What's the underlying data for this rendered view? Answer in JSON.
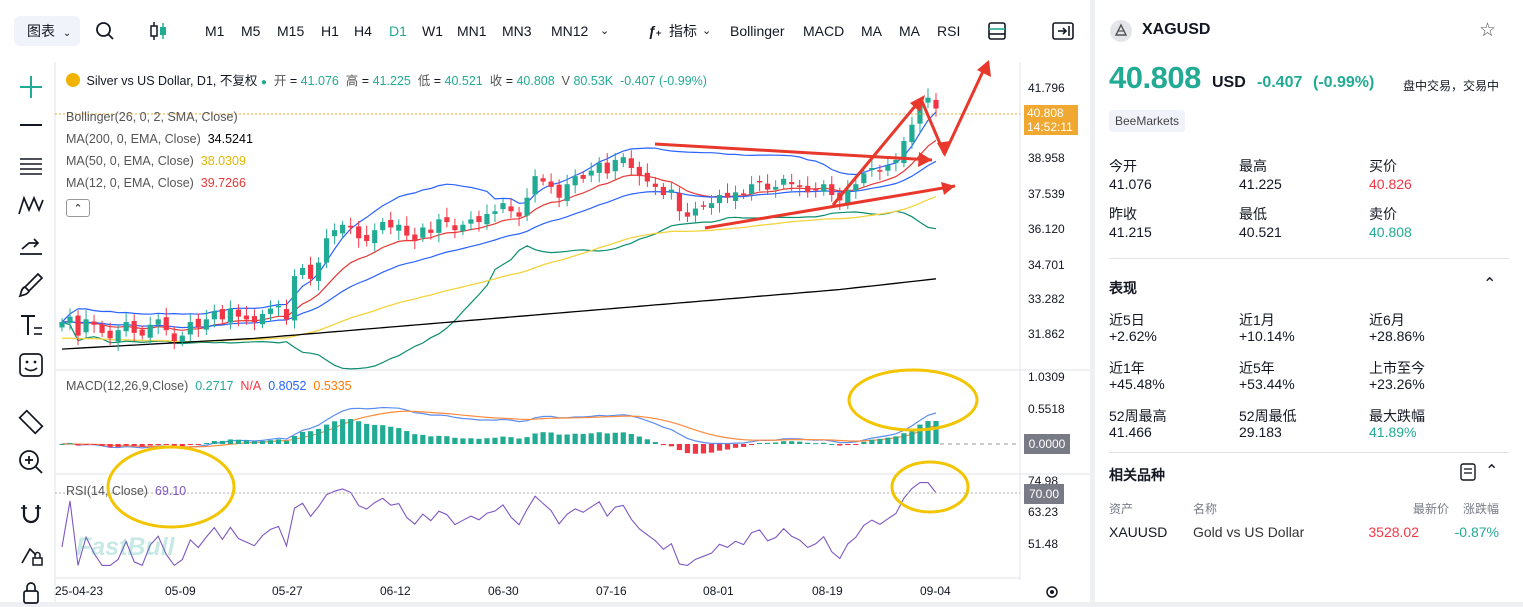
{
  "toolbar": {
    "chart_type_label": "图表",
    "timeframes": [
      "M1",
      "M5",
      "M15",
      "H1",
      "H4",
      "D1",
      "W1",
      "MN1",
      "MN3",
      "MN12"
    ],
    "active_timeframe": "D1",
    "indicator_label": "指标",
    "indicators": [
      "Bollinger",
      "MACD",
      "MA",
      "MA",
      "RSI"
    ]
  },
  "legend": {
    "symbol_title": "Silver vs US Dollar, D1, 不复权",
    "open_label": "开",
    "open": "41.076",
    "high_label": "高",
    "high": "41.225",
    "low_label": "低",
    "low": "40.521",
    "close_label": "收",
    "close": "40.808",
    "vol_label": "V",
    "volume": "80.53K",
    "change": "-0.407 (-0.99%)",
    "bollinger": "Bollinger(26, 0, 2, SMA, Close)",
    "ma200_label": "MA(200, 0, EMA, Close)",
    "ma200": "34.5241",
    "ma50_label": "MA(50, 0, EMA, Close)",
    "ma50": "38.0309",
    "ma12_label": "MA(12, 0, EMA, Close)",
    "ma12": "39.7266",
    "macd_label": "MACD(12,26,9,Close)",
    "macd_hist": "0.2717",
    "macd_na": "N/A",
    "macd_line": "0.8052",
    "macd_signal": "0.5335",
    "rsi_label": "RSI(14, Close)",
    "rsi": "69.10"
  },
  "price_tag": {
    "price": "40.808",
    "countdown": "14:52:11"
  },
  "watermark": "FastBull",
  "chart_data": {
    "type": "line",
    "title": "Silver vs US Dollar, D1",
    "x_ticks": [
      "25-04-23",
      "05-09",
      "05-27",
      "06-12",
      "06-30",
      "07-16",
      "08-01",
      "08-19",
      "09-04"
    ],
    "price_axis": [
      "41.796",
      "40.808",
      "38.958",
      "37.539",
      "36.120",
      "34.701",
      "33.282",
      "31.862"
    ],
    "macd_axis": [
      "1.0309",
      "0.5518",
      "0.0000"
    ],
    "rsi_axis": [
      "74.98",
      "70.00",
      "63.23",
      "51.48"
    ],
    "ylim": [
      31.2,
      42.3
    ],
    "series": [
      {
        "values": [
          32.9,
          33.1,
          32.4,
          33.0,
          32.8,
          32.5,
          32.3,
          32.6,
          32.9,
          32.5,
          32.4,
          32.8,
          33.0,
          32.6,
          32.2,
          32.4,
          32.9,
          32.7,
          33.0,
          33.3,
          33.0,
          33.4,
          33.1,
          33.0,
          32.9,
          33.2,
          33.4,
          33.5,
          33.0,
          34.6,
          34.9,
          34.5,
          35.1,
          36.0,
          36.3,
          36.5,
          36.4,
          36.0,
          35.9,
          36.3,
          36.6,
          36.4,
          36.5,
          36.1,
          35.9,
          36.4,
          36.2,
          36.7,
          36.6,
          36.3,
          36.5,
          36.7,
          36.6,
          36.9,
          37.0,
          37.3,
          37.0,
          36.8,
          37.5,
          38.3,
          38.1,
          37.9,
          37.5,
          38.0,
          38.3,
          38.2,
          38.5,
          38.8,
          38.4,
          38.9,
          39.0,
          38.6,
          38.3,
          38.1,
          37.9,
          37.6,
          37.8,
          37.0,
          36.8,
          37.1,
          37.2,
          37.3,
          37.6,
          37.5,
          37.7,
          37.6,
          38.0,
          38.1,
          37.8,
          37.9,
          38.2,
          38.0,
          37.9,
          37.7,
          37.8,
          38.0,
          37.6,
          37.4,
          37.8,
          38.0,
          38.4,
          38.6,
          38.5,
          38.7,
          38.9,
          39.6,
          40.2,
          40.9,
          41.2,
          40.8
        ]
      },
      {
        "name": "MA(200, 0, EMA, Close)",
        "values": [
          31.9,
          32.1,
          32.3,
          32.6,
          32.9,
          33.2,
          33.5,
          33.8,
          34.1,
          34.5
        ]
      }
    ]
  },
  "panel": {
    "symbol": "XAGUSD",
    "price": "40.808",
    "currency": "USD",
    "change": "-0.407",
    "change_pct": "(-0.99%)",
    "session": "盘中交易，交易中",
    "badge": "BeeMarkets",
    "stats": [
      {
        "label": "今开",
        "value": "41.076"
      },
      {
        "label": "最高",
        "value": "41.225"
      },
      {
        "label": "买价",
        "value": "40.826"
      },
      {
        "label": "昨收",
        "value": "41.215"
      },
      {
        "label": "最低",
        "value": "40.521"
      },
      {
        "label": "卖价",
        "value": "40.808"
      }
    ],
    "performance_title": "表现",
    "performance": [
      {
        "label": "近5日",
        "value": "+2.62%"
      },
      {
        "label": "近1月",
        "value": "+10.14%"
      },
      {
        "label": "近6月",
        "value": "+28.86%"
      },
      {
        "label": "近1年",
        "value": "+45.48%"
      },
      {
        "label": "近5年",
        "value": "+53.44%"
      },
      {
        "label": "上市至今",
        "value": "+23.26%"
      },
      {
        "label": "52周最高",
        "value": "41.466"
      },
      {
        "label": "52周最低",
        "value": "29.183"
      },
      {
        "label": "最大跌幅",
        "value": "41.89%"
      }
    ],
    "related_title": "相关品种",
    "related_headers": [
      "资产",
      "名称",
      "最新价",
      "涨跌幅"
    ],
    "related": [
      {
        "asset": "XAUUSD",
        "name": "Gold vs US Dollar",
        "price": "3528.02",
        "change": "-0.87%"
      }
    ]
  },
  "colors": {
    "up": "#22ab94",
    "down": "#f23645",
    "ma200": "#000000",
    "ma50": "#f5d33d",
    "ma12": "#e53935",
    "boll_mid": "#2962ff",
    "boll_band": "#0b8d6e",
    "annotation": "#e8372b",
    "highlight": "#f2c500",
    "rsi": "#7e57c2"
  }
}
